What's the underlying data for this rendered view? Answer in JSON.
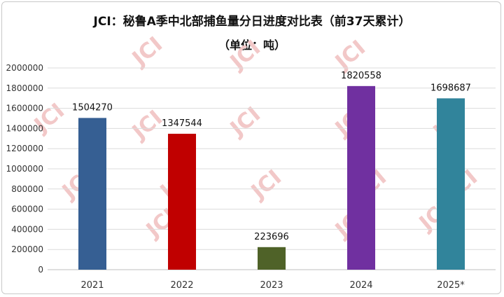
{
  "chart_data": {
    "type": "bar",
    "title": "JCI：秘鲁A季中北部捕鱼量分日进度对比表（前37天累计）",
    "subtitle": "（单位：吨）",
    "categories": [
      "2021",
      "2022",
      "2023",
      "2024",
      "2025*"
    ],
    "values": [
      1504270,
      1347544,
      223696,
      1820558,
      1698687
    ],
    "data_labels": [
      "1504270",
      "1347544",
      "223696",
      "1820558",
      "1698687"
    ],
    "colors": [
      "#365f93",
      "#c00000",
      "#4f6228",
      "#7030a0",
      "#31849b"
    ],
    "ylim": [
      0,
      2000000
    ],
    "yticks": [
      "0",
      "200000",
      "400000",
      "600000",
      "800000",
      "1000000",
      "1200000",
      "1400000",
      "1600000",
      "1800000",
      "2000000"
    ],
    "xlabel": "",
    "ylabel": "",
    "grid": true,
    "legend": "none"
  },
  "watermark": "JCI"
}
